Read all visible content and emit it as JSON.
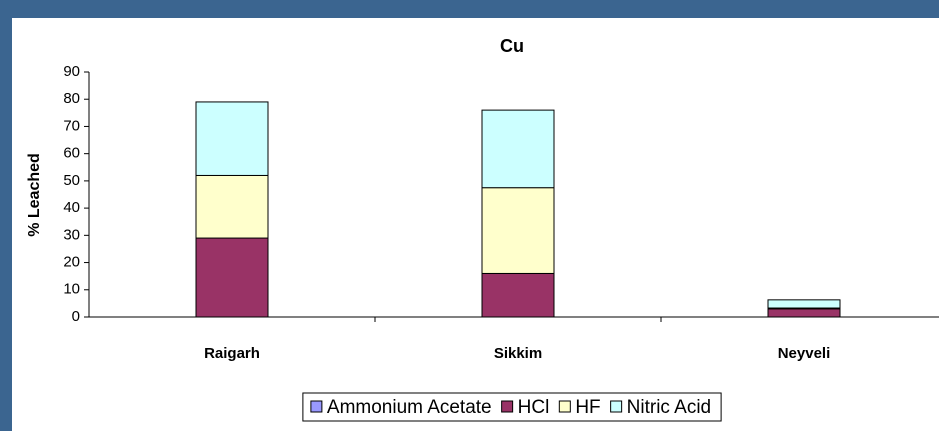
{
  "chart_data": {
    "type": "stacked-bar",
    "title": "Cu",
    "y_label": "% Leached",
    "categories": [
      "Raigarh",
      "Sikkim",
      "Neyveli"
    ],
    "series": [
      {
        "name": "Ammonium Acetate",
        "color": "#9999ff",
        "values": [
          0,
          0,
          0
        ]
      },
      {
        "name": "HCl",
        "color": "#993366",
        "values": [
          29,
          16,
          3
        ]
      },
      {
        "name": "HF",
        "color": "#ffffcc",
        "values": [
          23,
          31.5,
          0.3
        ]
      },
      {
        "name": "Nitric Acid",
        "color": "#ccffff",
        "values": [
          27,
          28.5,
          3
        ]
      }
    ],
    "ylim": [
      0,
      90
    ],
    "yticks": [
      0,
      10,
      20,
      30,
      40,
      50,
      60,
      70,
      80,
      90
    ],
    "legend": "bottom"
  }
}
